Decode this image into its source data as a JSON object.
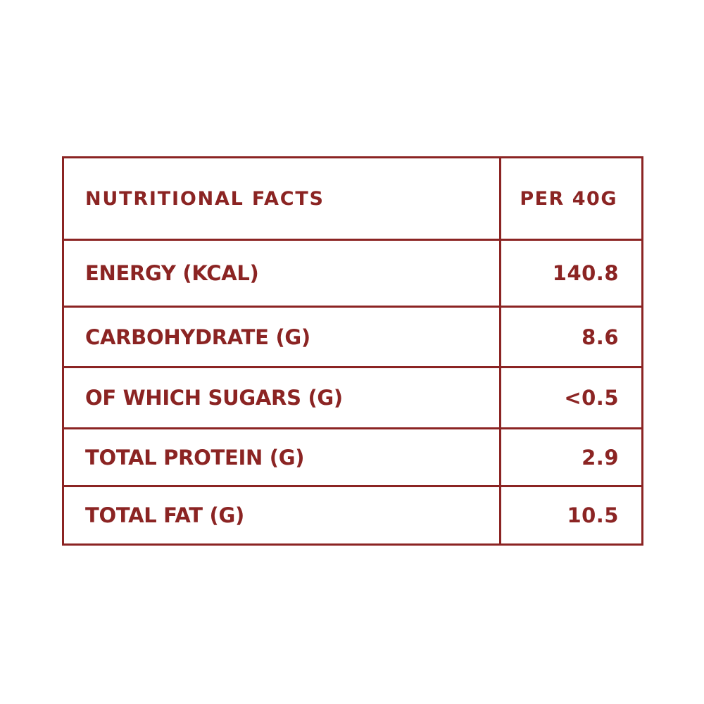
{
  "colors": {
    "accent": "#8b2423",
    "background": "#ffffff"
  },
  "table": {
    "header": {
      "label": "NUTRITIONAL FACTS",
      "value": "PER 40G"
    },
    "rows": [
      {
        "label": "ENERGY (KCAL)",
        "value": "140.8"
      },
      {
        "label": "CARBOHYDRATE (G)",
        "value": "8.6"
      },
      {
        "label": "OF WHICH SUGARS (G)",
        "value": "<0.5"
      },
      {
        "label": "TOTAL PROTEIN (G)",
        "value": "2.9"
      },
      {
        "label": "TOTAL FAT (G)",
        "value": "10.5"
      }
    ]
  }
}
